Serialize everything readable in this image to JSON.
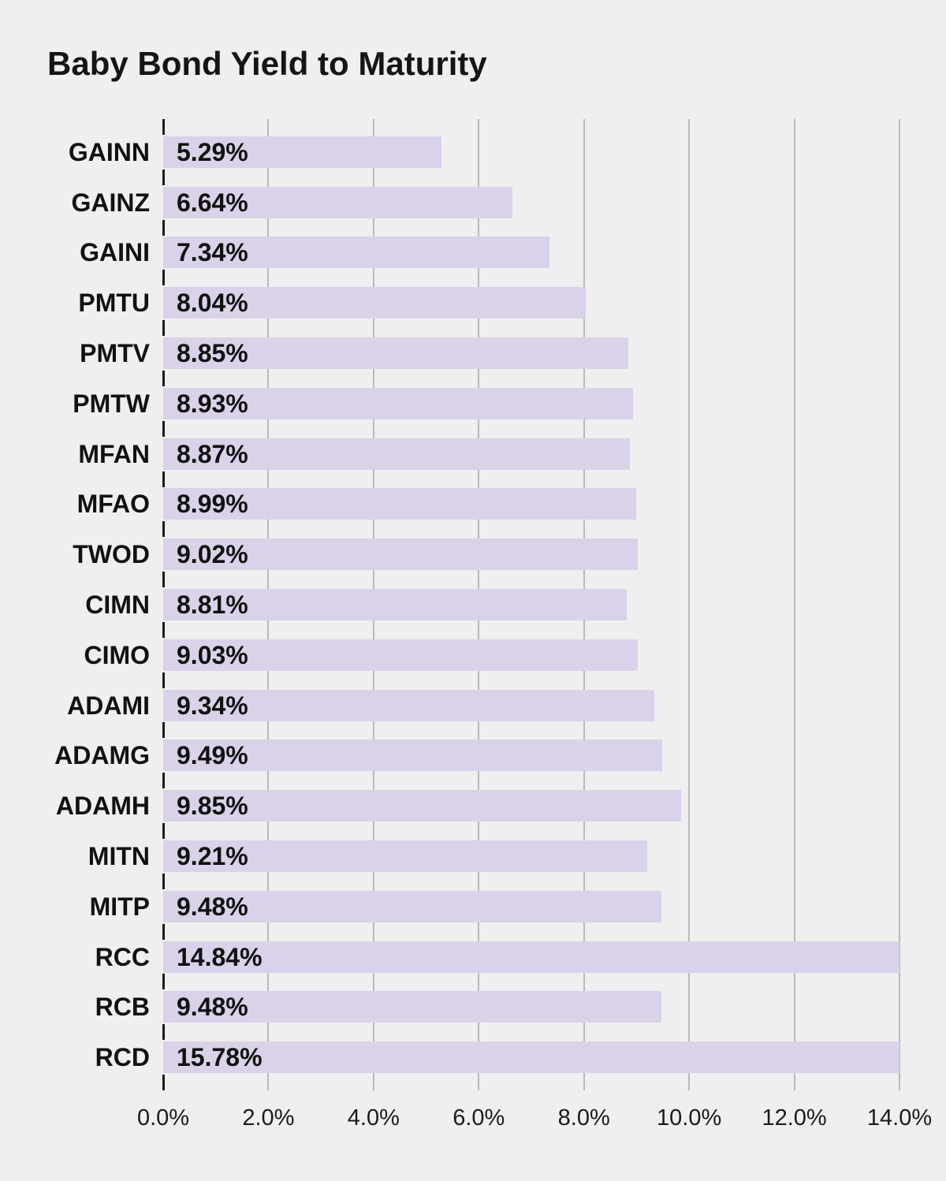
{
  "chart_data": {
    "type": "bar",
    "orientation": "horizontal",
    "title": "Baby Bond Yield to Maturity",
    "categories": [
      "GAINN",
      "GAINZ",
      "GAINI",
      "PMTU",
      "PMTV",
      "PMTW",
      "MFAN",
      "MFAO",
      "TWOD",
      "CIMN",
      "CIMO",
      "ADAMI",
      "ADAMG",
      "ADAMH",
      "MITN",
      "MITP",
      "RCC",
      "RCB",
      "RCD"
    ],
    "values": [
      5.29,
      6.64,
      7.34,
      8.04,
      8.85,
      8.93,
      8.87,
      8.99,
      9.02,
      8.81,
      9.03,
      9.34,
      9.49,
      9.85,
      9.21,
      9.48,
      14.84,
      9.48,
      15.78
    ],
    "value_labels": [
      "5.29%",
      "6.64%",
      "7.34%",
      "8.04%",
      "8.85%",
      "8.93%",
      "8.87%",
      "8.99%",
      "9.02%",
      "8.81%",
      "9.03%",
      "9.34%",
      "9.49%",
      "9.85%",
      "9.21%",
      "9.48%",
      "14.84%",
      "9.48%",
      "15.78%"
    ],
    "xlabel": "",
    "ylabel": "",
    "legend": "none",
    "grid": true,
    "x_axis": {
      "min": 0,
      "max": 14,
      "tick_labels": [
        "0.0%",
        "2.0%",
        "4.0%",
        "6.0%",
        "8.0%",
        "10.0%",
        "12.0%",
        "14.0%"
      ],
      "tick_values": [
        0,
        2,
        4,
        6,
        8,
        10,
        12,
        14
      ]
    },
    "notes": "bars exceeding axis max are clipped at 14.0%",
    "colors": {
      "background": "#efefef",
      "bar_fill": "#d9d2e9",
      "gridline": "#b9b9b9",
      "axis_tick": "#1b1b1b",
      "text": "#111111"
    }
  }
}
